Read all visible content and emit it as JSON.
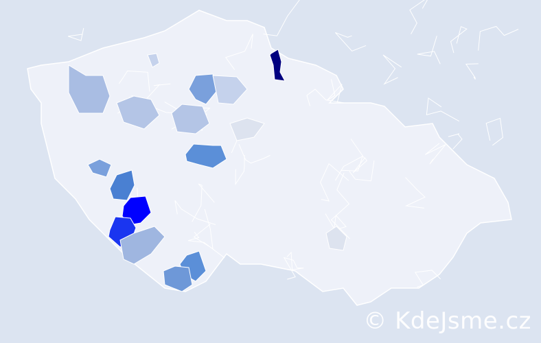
{
  "map": {
    "type": "choropleth",
    "country_fill": "#eef1f9",
    "border_color": "#ffffff",
    "background": "#dce4f1",
    "highlighted_regions": [
      {
        "fill": "#000080"
      },
      {
        "fill": "#0000ff"
      },
      {
        "fill": "#1a35f0"
      },
      {
        "fill": "#5b8fd8"
      },
      {
        "fill": "#5b8fd8"
      },
      {
        "fill": "#6e98d8"
      },
      {
        "fill": "#7aa0dc"
      },
      {
        "fill": "#4a80d2"
      },
      {
        "fill": "#a9bde3"
      },
      {
        "fill": "#b4c5e6"
      },
      {
        "fill": "#b4c5e6"
      },
      {
        "fill": "#c5d2ec"
      },
      {
        "fill": "#c5d2ec"
      },
      {
        "fill": "#dde3ef"
      },
      {
        "fill": "#dde3ef"
      },
      {
        "fill": "#9fb6e0"
      },
      {
        "fill": "#7aa0dc"
      }
    ]
  },
  "watermark": "© KdeJsme.cz"
}
